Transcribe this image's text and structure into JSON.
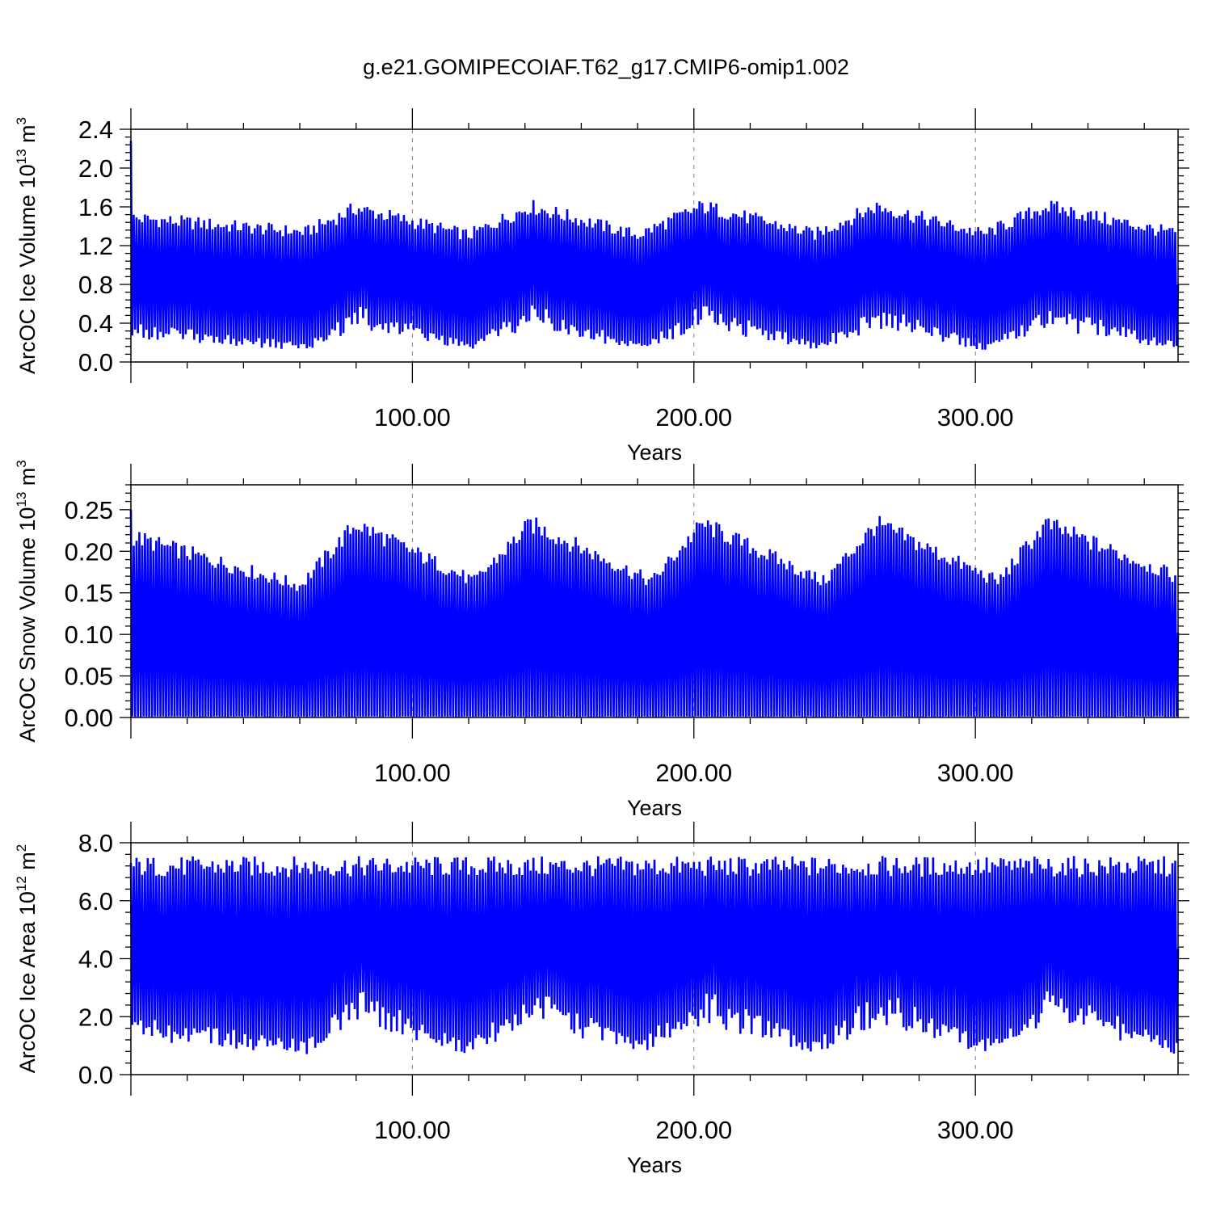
{
  "title": "g.e21.GOMIPECOIAF.T62_g17.CMIP6-omip1.002",
  "colors": {
    "line": "#0000ff",
    "axis": "#000000",
    "grid": "#7f7f7f"
  },
  "chart_data": [
    {
      "type": "line",
      "ylabel": "ArcOC Ice Volume 10",
      "ylabel_exp": "13",
      "ylabel_unit": " m",
      "ylabel_unit_exp": "3",
      "xlabel": "Years",
      "xlim": [
        0,
        372
      ],
      "ylim": [
        0,
        2.4
      ],
      "yticks": [
        "0.0",
        "0.4",
        "0.8",
        "1.2",
        "1.6",
        "2.0",
        "2.4"
      ],
      "ytick_values": [
        0,
        0.4,
        0.8,
        1.2,
        1.6,
        2.0,
        2.4
      ],
      "xticks": [
        "100.00",
        "200.00",
        "300.00"
      ],
      "xtick_values": [
        100,
        200,
        300
      ],
      "grid": "vertical dashed at major x ticks",
      "series": [
        {
          "sampling": "annual maxima and minima (seasonal cycle), years 0-372",
          "x": [
            0,
            62,
            80,
            120,
            142,
            180,
            203,
            243,
            265,
            303,
            325,
            372
          ],
          "annual_max": [
            1.5,
            1.35,
            1.6,
            1.32,
            1.62,
            1.32,
            1.62,
            1.33,
            1.62,
            1.33,
            1.62,
            1.33
          ],
          "annual_min": [
            0.32,
            0.15,
            0.45,
            0.15,
            0.46,
            0.15,
            0.46,
            0.15,
            0.46,
            0.15,
            0.46,
            0.15
          ],
          "initial_peak": 2.28
        }
      ]
    },
    {
      "type": "line",
      "ylabel": "ArcOC Snow Volume 10",
      "ylabel_exp": "13",
      "ylabel_unit": " m",
      "ylabel_unit_exp": "3",
      "xlabel": "Years",
      "xlim": [
        0,
        372
      ],
      "ylim": [
        0,
        0.28
      ],
      "yticks": [
        "0.00",
        "0.05",
        "0.10",
        "0.15",
        "0.20",
        "0.25"
      ],
      "ytick_values": [
        0,
        0.05,
        0.1,
        0.15,
        0.2,
        0.25
      ],
      "xticks": [
        "100.00",
        "200.00",
        "300.00"
      ],
      "xtick_values": [
        100,
        200,
        300
      ],
      "grid": "vertical dashed at major x ticks",
      "series": [
        {
          "sampling": "annual maxima and minima (seasonal cycle), years 0-372",
          "x": [
            0,
            60,
            80,
            122,
            142,
            185,
            203,
            246,
            265,
            308,
            325,
            372
          ],
          "annual_max": [
            0.22,
            0.16,
            0.235,
            0.165,
            0.235,
            0.165,
            0.235,
            0.165,
            0.235,
            0.165,
            0.235,
            0.17
          ],
          "annual_min": [
            0.001,
            0.001,
            0.001,
            0.001,
            0.001,
            0.001,
            0.001,
            0.001,
            0.001,
            0.001,
            0.001,
            0.001
          ],
          "initial_peak": 0.25
        }
      ]
    },
    {
      "type": "line",
      "ylabel": "ArcOC Ice Area 10",
      "ylabel_exp": "12",
      "ylabel_unit": " m",
      "ylabel_unit_exp": "2",
      "xlabel": "Years",
      "xlim": [
        0,
        372
      ],
      "ylim": [
        0,
        8.0
      ],
      "yticks": [
        "0.0",
        "2.0",
        "4.0",
        "6.0",
        "8.0"
      ],
      "ytick_values": [
        0,
        2,
        4,
        6,
        8
      ],
      "xticks": [
        "100.00",
        "200.00",
        "300.00"
      ],
      "xtick_values": [
        100,
        200,
        300
      ],
      "grid": "vertical dashed at major x ticks",
      "series": [
        {
          "sampling": "annual maxima and minima (seasonal cycle), years 0-372",
          "x": [
            0,
            62,
            80,
            120,
            142,
            180,
            203,
            243,
            265,
            303,
            325,
            372
          ],
          "annual_max": [
            7.25,
            7.25,
            7.25,
            7.25,
            7.25,
            7.25,
            7.25,
            7.25,
            7.25,
            7.25,
            7.25,
            7.25
          ],
          "annual_min": [
            1.6,
            0.9,
            2.3,
            0.9,
            2.3,
            0.9,
            2.3,
            0.9,
            2.3,
            0.9,
            2.3,
            0.9
          ],
          "initial_peak": 7.3
        }
      ]
    }
  ]
}
